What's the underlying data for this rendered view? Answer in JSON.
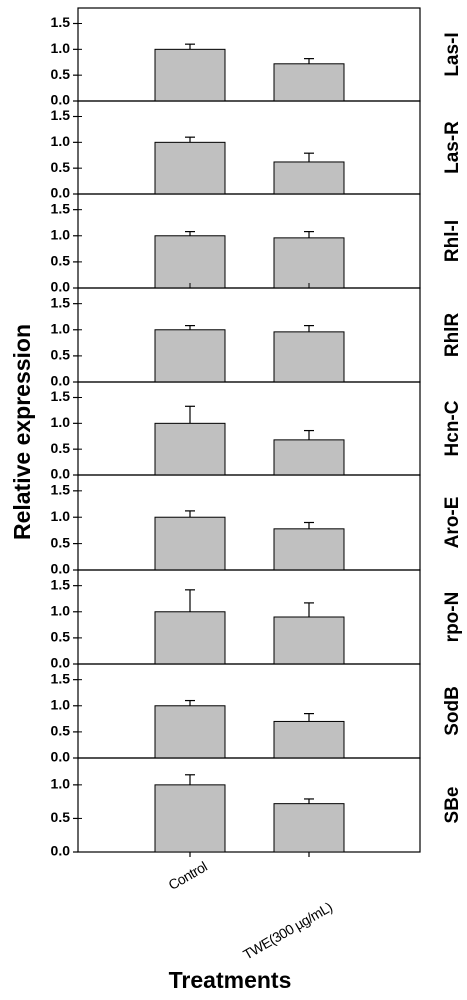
{
  "chart_data": {
    "type": "bar",
    "ylabel": "Relative expression",
    "xlabel": "Treatments",
    "categories": [
      "Control",
      "TWE(300 µg/mL)"
    ],
    "bar_color": "#c0c0c0",
    "panels": [
      {
        "gene": "Las-I",
        "values": [
          1.0,
          0.72
        ],
        "errors": [
          0.1,
          0.1
        ],
        "ylim": [
          0,
          1.8
        ],
        "yticks": [
          "0.0",
          "0.5",
          "1.0",
          "1.5"
        ]
      },
      {
        "gene": "Las-R",
        "values": [
          1.0,
          0.62
        ],
        "errors": [
          0.1,
          0.17
        ],
        "ylim": [
          0,
          1.8
        ],
        "yticks": [
          "0.0",
          "0.5",
          "1.0",
          "1.5"
        ]
      },
      {
        "gene": "Rhl-I",
        "values": [
          1.0,
          0.96
        ],
        "errors": [
          0.08,
          0.12
        ],
        "ylim": [
          0,
          1.8
        ],
        "yticks": [
          "0.0",
          "0.5",
          "1.0",
          "1.5"
        ]
      },
      {
        "gene": "RhlR",
        "values": [
          1.0,
          0.96
        ],
        "errors": [
          0.08,
          0.12
        ],
        "ylim": [
          0,
          1.8
        ],
        "yticks": [
          "0.0",
          "0.5",
          "1.0",
          "1.5"
        ]
      },
      {
        "gene": "Hcn-C",
        "values": [
          1.0,
          0.68
        ],
        "errors": [
          0.33,
          0.18
        ],
        "ylim": [
          0,
          1.8
        ],
        "yticks": [
          "0.0",
          "0.5",
          "1.0",
          "1.5"
        ]
      },
      {
        "gene": "Aro-E",
        "values": [
          1.0,
          0.78
        ],
        "errors": [
          0.12,
          0.12
        ],
        "ylim": [
          0,
          1.8
        ],
        "yticks": [
          "0.0",
          "0.5",
          "1.0",
          "1.5"
        ]
      },
      {
        "gene": "rpo-N",
        "values": [
          1.0,
          0.9
        ],
        "errors": [
          0.42,
          0.27
        ],
        "ylim": [
          0,
          1.8
        ],
        "yticks": [
          "0.0",
          "0.5",
          "1.0",
          "1.5"
        ]
      },
      {
        "gene": "SodB",
        "values": [
          1.0,
          0.7
        ],
        "errors": [
          0.1,
          0.15
        ],
        "ylim": [
          0,
          1.8
        ],
        "yticks": [
          "0.0",
          "0.5",
          "1.0",
          "1.5"
        ]
      },
      {
        "gene": "SBe",
        "values": [
          1.0,
          0.72
        ],
        "errors": [
          0.15,
          0.07
        ],
        "ylim": [
          0,
          1.4
        ],
        "yticks": [
          "0.0",
          "0.5",
          "1.0"
        ]
      }
    ]
  }
}
